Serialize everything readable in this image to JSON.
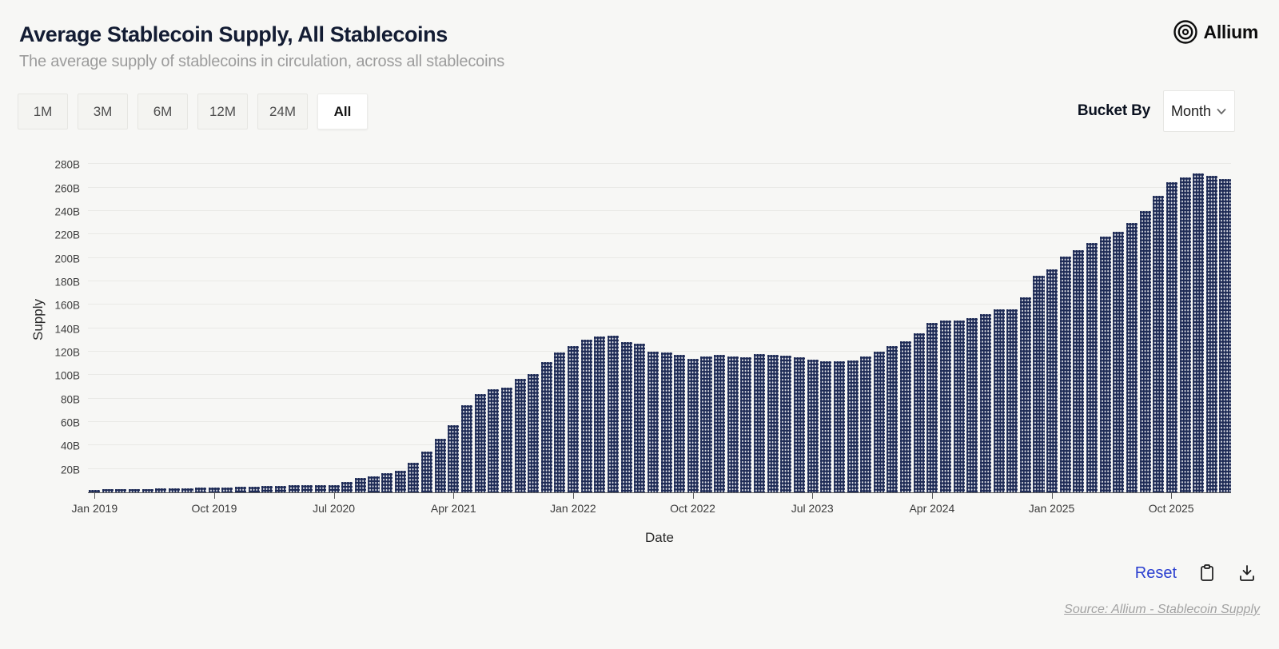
{
  "header": {
    "title": "Average Stablecoin Supply, All Stablecoins",
    "subtitle": "The average supply of stablecoins in circulation, across all stablecoins",
    "brand": "Allium"
  },
  "controls": {
    "range_buttons": [
      {
        "label": "1M",
        "active": false
      },
      {
        "label": "3M",
        "active": false
      },
      {
        "label": "6M",
        "active": false
      },
      {
        "label": "12M",
        "active": false
      },
      {
        "label": "24M",
        "active": false
      },
      {
        "label": "All",
        "active": true
      }
    ],
    "bucket_by_label": "Bucket By",
    "bucket_value": "Month"
  },
  "chart_data": {
    "type": "bar",
    "title": "Average Stablecoin Supply, All Stablecoins",
    "xlabel": "Date",
    "ylabel": "Supply",
    "ylim": [
      0,
      287
    ],
    "yticks": [
      20,
      40,
      60,
      80,
      100,
      120,
      140,
      160,
      180,
      200,
      220,
      240,
      260,
      280
    ],
    "ytick_suffix": "B",
    "grid": true,
    "bar_color": "#1d2a55",
    "x": [
      "2019-01",
      "2019-02",
      "2019-03",
      "2019-04",
      "2019-05",
      "2019-06",
      "2019-07",
      "2019-08",
      "2019-09",
      "2019-10",
      "2019-11",
      "2019-12",
      "2020-01",
      "2020-02",
      "2020-03",
      "2020-04",
      "2020-05",
      "2020-06",
      "2020-07",
      "2020-08",
      "2020-09",
      "2020-10",
      "2020-11",
      "2020-12",
      "2021-01",
      "2021-02",
      "2021-03",
      "2021-04",
      "2021-05",
      "2021-06",
      "2021-07",
      "2021-08",
      "2021-09",
      "2021-10",
      "2021-11",
      "2021-12",
      "2022-01",
      "2022-02",
      "2022-03",
      "2022-04",
      "2022-05",
      "2022-06",
      "2022-07",
      "2022-08",
      "2022-09",
      "2022-10",
      "2022-11",
      "2022-12",
      "2023-01",
      "2023-02",
      "2023-03",
      "2023-04",
      "2023-05",
      "2023-06",
      "2023-07",
      "2023-08",
      "2023-09",
      "2023-10",
      "2023-11",
      "2023-12",
      "2024-01",
      "2024-02",
      "2024-03",
      "2024-04",
      "2024-05",
      "2024-06",
      "2024-07",
      "2024-08",
      "2024-09",
      "2024-10",
      "2024-11",
      "2024-12",
      "2025-01",
      "2025-02",
      "2025-03",
      "2025-04",
      "2025-05",
      "2025-06",
      "2025-07",
      "2025-08",
      "2025-09",
      "2025-10",
      "2025-11",
      "2025-12",
      "2026-01",
      "2026-02"
    ],
    "values": [
      2.3,
      2.4,
      2.6,
      2.8,
      3.0,
      3.2,
      3.4,
      3.6,
      3.8,
      4.0,
      4.3,
      4.6,
      4.9,
      5.2,
      5.6,
      5.9,
      6.0,
      6.1,
      6.3,
      8.8,
      12.2,
      13.6,
      16.3,
      18.3,
      25,
      35,
      45.5,
      57,
      74,
      84,
      88,
      89,
      96.5,
      101,
      111,
      119,
      125,
      130,
      133,
      133.5,
      128,
      127,
      120,
      119,
      117,
      114,
      116,
      117.5,
      116,
      115.5,
      118,
      117,
      116.8,
      115.4,
      113.4,
      112,
      112,
      112.2,
      116,
      120,
      125,
      129,
      136,
      144.7,
      146.7,
      146.7,
      148.8,
      152,
      156.2,
      156.2,
      166.4,
      184.7,
      190,
      201,
      206.5,
      212.6,
      218,
      222,
      230,
      240,
      253,
      264.7,
      268.8,
      272,
      270,
      267.5
    ],
    "x_ticks": [
      {
        "index": 0,
        "label": "Jan 2019"
      },
      {
        "index": 9,
        "label": "Oct 2019"
      },
      {
        "index": 18,
        "label": "Jul 2020"
      },
      {
        "index": 27,
        "label": "Apr 2021"
      },
      {
        "index": 36,
        "label": "Jan 2022"
      },
      {
        "index": 45,
        "label": "Oct 2022"
      },
      {
        "index": 54,
        "label": "Jul 2023"
      },
      {
        "index": 63,
        "label": "Apr 2024"
      },
      {
        "index": 72,
        "label": "Jan 2025"
      },
      {
        "index": 81,
        "label": "Oct 2025"
      }
    ],
    "legend": null
  },
  "footer": {
    "reset_label": "Reset",
    "source": "Source: Allium - Stablecoin Supply"
  },
  "colors": {
    "background": "#f7f7f5",
    "bar": "#1d2a55",
    "accent_link": "#2b3fd0",
    "title_text": "#131c33",
    "subtitle_text": "#9c9c9c",
    "gridline": "#e9e9e6"
  }
}
